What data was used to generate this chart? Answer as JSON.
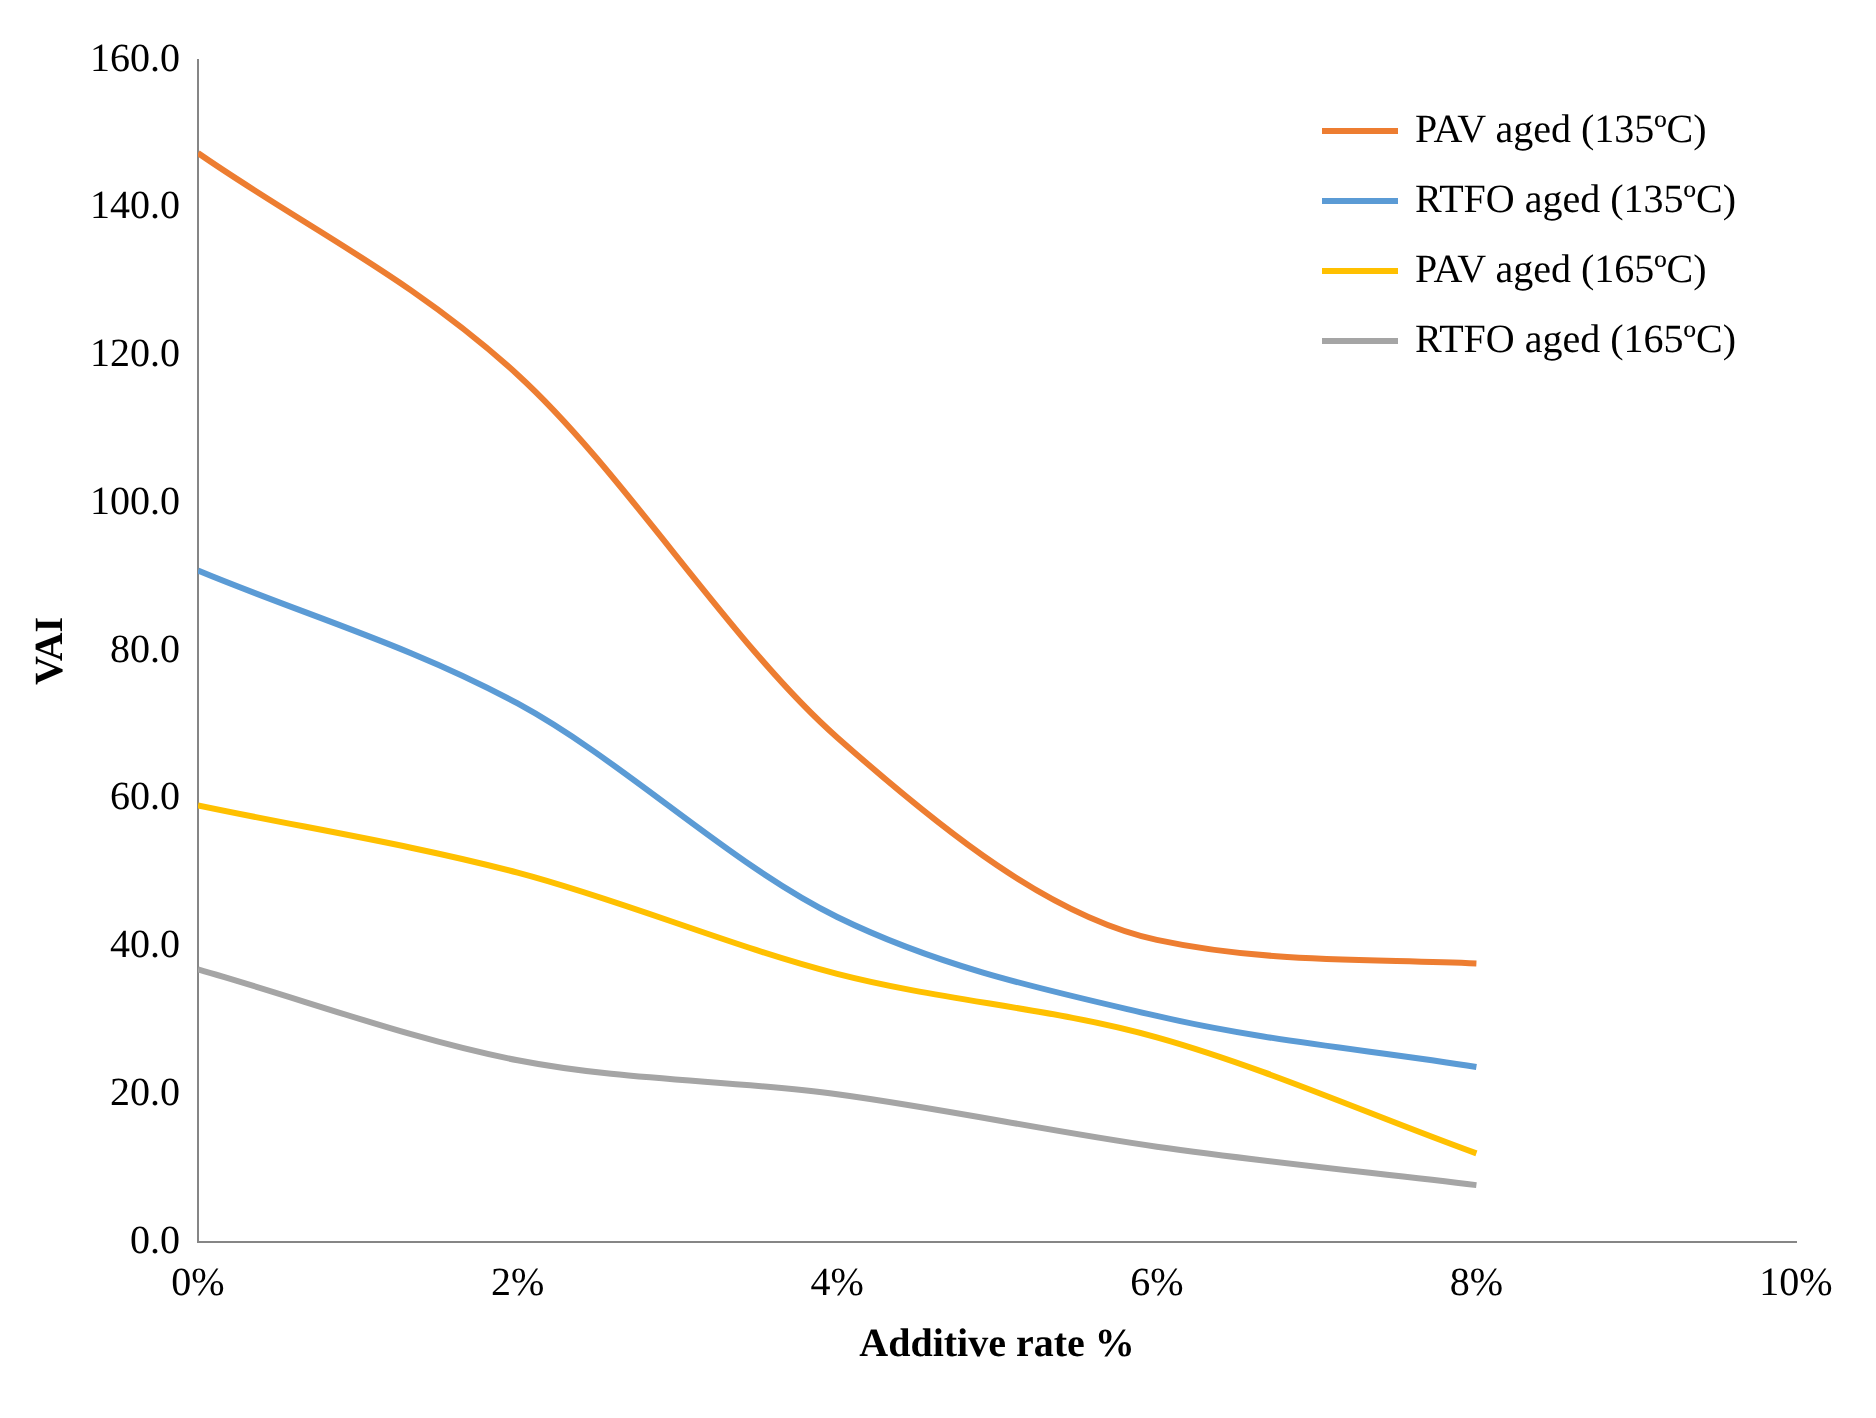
{
  "chart_data": {
    "type": "line",
    "xlabel": "Additive rate %",
    "ylabel": "VAI",
    "x": [
      0,
      2,
      4,
      6,
      8
    ],
    "series": [
      {
        "name": "PAV aged (135ºC)",
        "color": "#ed7d31",
        "values": [
          147.4,
          117.4,
          68.3,
          40.9,
          37.7
        ]
      },
      {
        "name": "RTFO aged (135ºC)",
        "color": "#5b9bd5",
        "values": [
          90.9,
          72.9,
          44.0,
          30.6,
          23.7
        ]
      },
      {
        "name": "PAV aged (165ºC)",
        "color": "#ffc000",
        "values": [
          59.1,
          50.0,
          36.3,
          27.7,
          12.0
        ]
      },
      {
        "name": "RTFO aged (165ºC)",
        "color": "#a5a5a5",
        "values": [
          36.9,
          24.6,
          20.0,
          12.9,
          7.7
        ]
      }
    ],
    "xlim": [
      0,
      10
    ],
    "xticks": [
      {
        "value": 0,
        "label": "0%"
      },
      {
        "value": 2,
        "label": "2%"
      },
      {
        "value": 4,
        "label": "4%"
      },
      {
        "value": 6,
        "label": "6%"
      },
      {
        "value": 8,
        "label": "8%"
      },
      {
        "value": 10,
        "label": "10%"
      }
    ],
    "ylim": [
      0,
      160
    ],
    "yticks": [
      {
        "value": 0,
        "label": "0.0"
      },
      {
        "value": 20,
        "label": "20.0"
      },
      {
        "value": 40,
        "label": "40.0"
      },
      {
        "value": 60,
        "label": "60.0"
      },
      {
        "value": 80,
        "label": "80.0"
      },
      {
        "value": 100,
        "label": "100.0"
      },
      {
        "value": 120,
        "label": "120.0"
      },
      {
        "value": 140,
        "label": "140.0"
      },
      {
        "value": 160,
        "label": "160.0"
      }
    ],
    "grid": false,
    "legend": "top right",
    "marker": "none",
    "line_style": "solid"
  }
}
